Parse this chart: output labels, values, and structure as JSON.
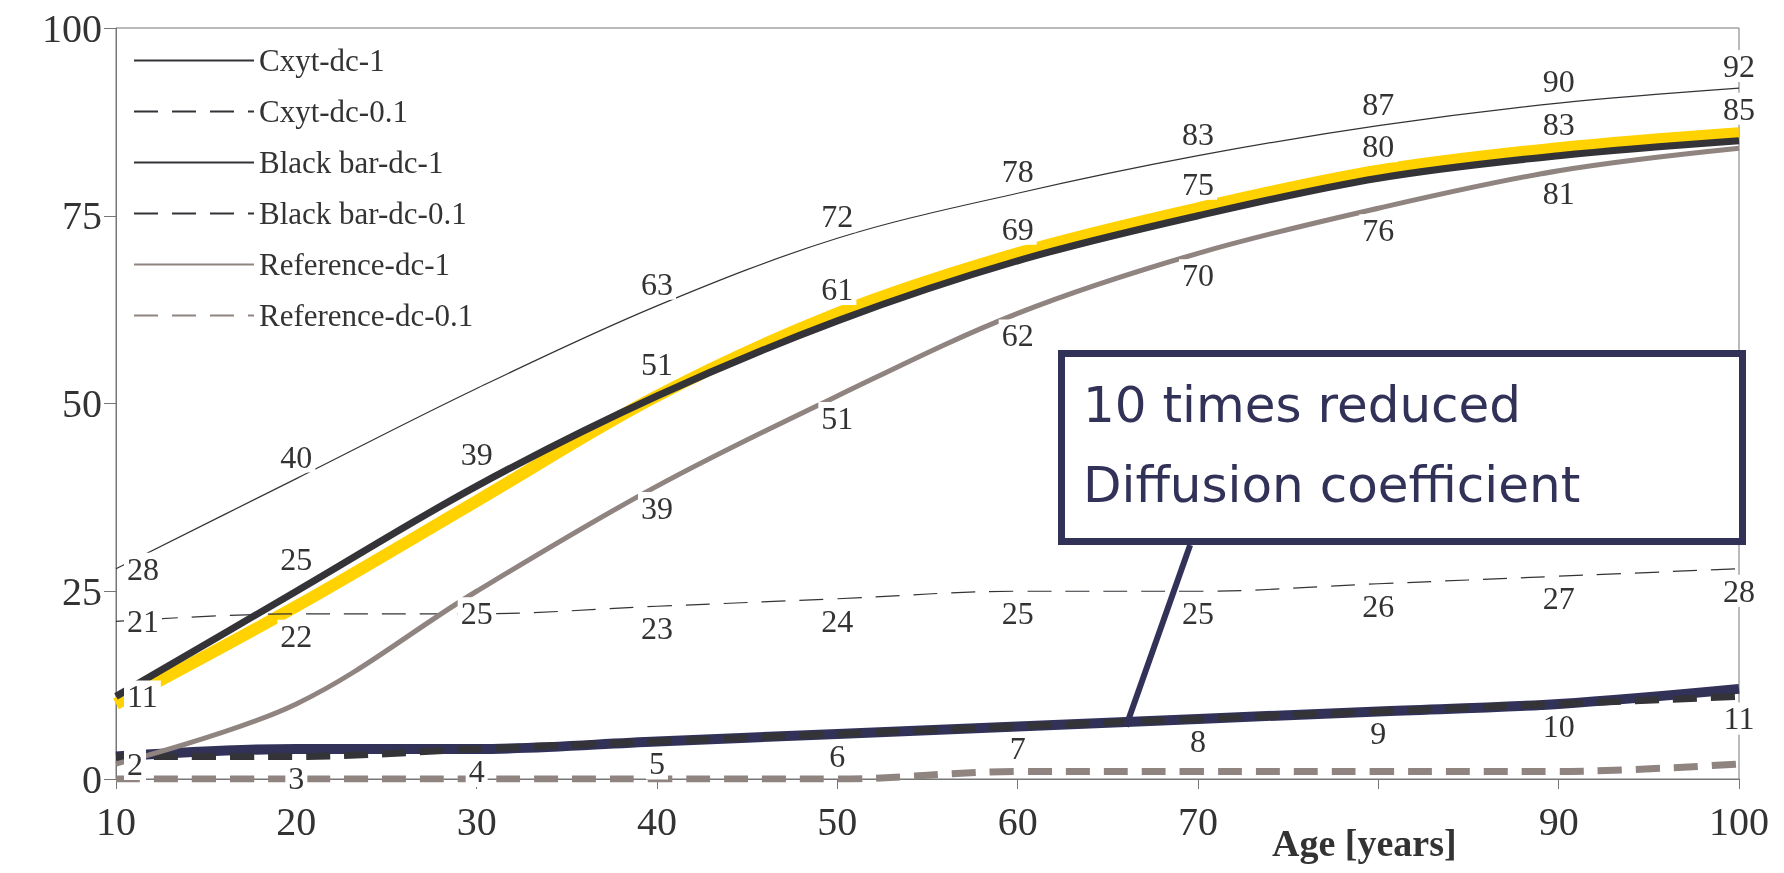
{
  "chart_data": {
    "type": "line",
    "xlabel": "Age [years]",
    "x": [
      10,
      20,
      30,
      40,
      50,
      60,
      70,
      80,
      90,
      100
    ],
    "xlim": [
      10,
      100
    ],
    "xticks": [
      10,
      20,
      30,
      40,
      50,
      60,
      70,
      {
        "value": 80,
        "label": null
      },
      90,
      100
    ],
    "ylim": [
      0,
      100
    ],
    "yticks": [
      0,
      25,
      50,
      75,
      100
    ],
    "grid": false,
    "legend": "top left",
    "marker": "none",
    "series": [
      {
        "name": "Cxyt-dc-1",
        "color": "#333338",
        "line_style": "solid",
        "values": [
          11,
          25,
          39,
          51,
          61,
          69,
          75,
          80,
          83,
          85
        ],
        "value_labels": [
          "11",
          "25",
          "39",
          "51",
          "61",
          "69",
          "75",
          "80",
          "83",
          "85"
        ]
      },
      {
        "name": "Cxyt-dc-0.1",
        "color": "#333338",
        "line_style": "dashed",
        "values": [
          3,
          3,
          4,
          5,
          6,
          7,
          8,
          9,
          10,
          11
        ],
        "value_labels": [
          null,
          "3",
          "4",
          "5",
          "6",
          "7",
          "8",
          "9",
          "10",
          "11"
        ]
      },
      {
        "name": "Black bar-dc-1",
        "color": "#333338",
        "line_style": "solid",
        "values": [
          28,
          40,
          52,
          63,
          72,
          78,
          83,
          87,
          90,
          92
        ],
        "value_labels": [
          "28",
          "40",
          null,
          "63",
          "72",
          "78",
          "83",
          "87",
          "90",
          "92"
        ]
      },
      {
        "name": "Black bar-dc-0.1",
        "color": "#333338",
        "line_style": "dashed",
        "values": [
          21,
          22,
          22,
          23,
          24,
          25,
          25,
          26,
          27,
          28
        ],
        "value_labels": [
          "21",
          "22",
          null,
          "23",
          "24",
          "25",
          "25",
          "26",
          "27",
          "28"
        ]
      },
      {
        "name": "Reference-dc-1",
        "color": "#8f8480",
        "line_style": "solid",
        "values": [
          2,
          10,
          25,
          39,
          51,
          62,
          70,
          76,
          81,
          84
        ],
        "value_labels": [
          "2",
          null,
          "25",
          "39",
          "51",
          "62",
          "70",
          "76",
          "81",
          null
        ]
      },
      {
        "name": "Reference-dc-0.1",
        "color": "#8f8480",
        "line_style": "dashed",
        "values": [
          0,
          0,
          0,
          0,
          0,
          1,
          1,
          1,
          1,
          2
        ]
      },
      {
        "color": "#ffd200",
        "line_style": "solid",
        "values": [
          10,
          23,
          37,
          51,
          62,
          70,
          76,
          81,
          84,
          86
        ]
      },
      {
        "color": "#323259",
        "line_style": "solid",
        "values": [
          3,
          4,
          4,
          5,
          6,
          7,
          8,
          9,
          10,
          12
        ]
      }
    ],
    "annotations": [
      {
        "text": "10 times reduced\nDiffusion coefficient",
        "x": 66,
        "y": 7
      }
    ]
  }
}
